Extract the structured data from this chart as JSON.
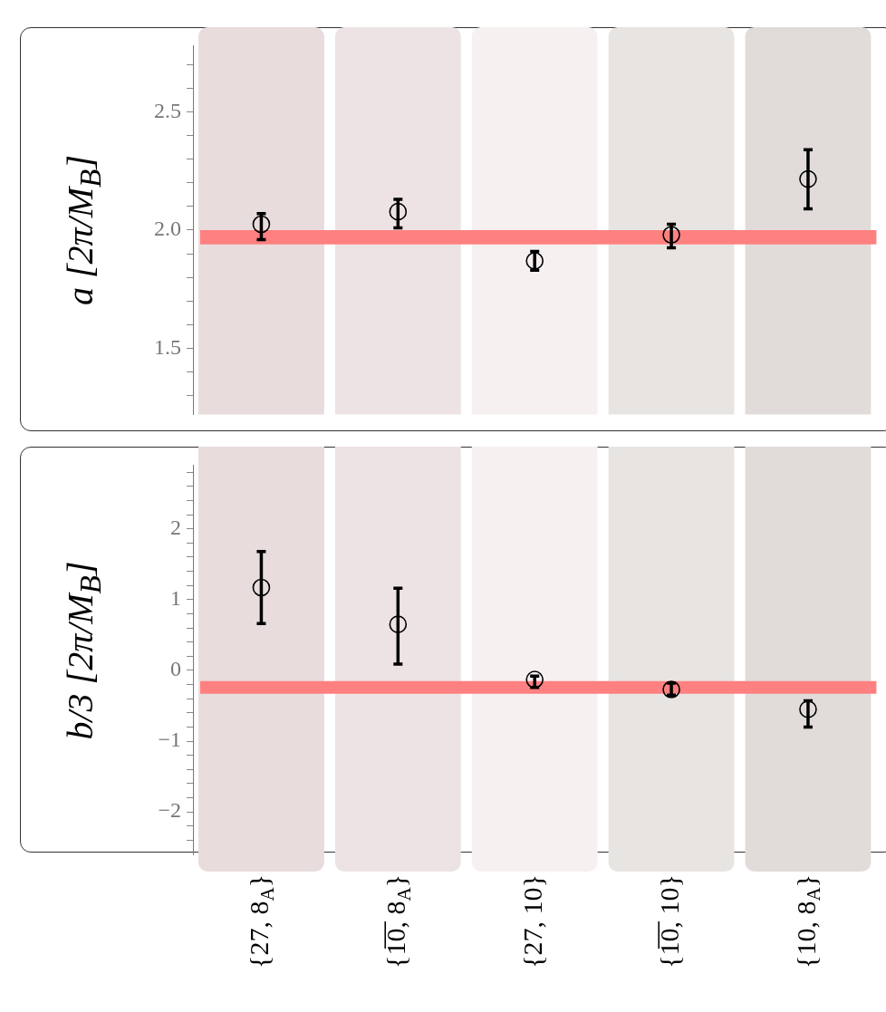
{
  "chart_data": [
    {
      "type": "scatter",
      "ylabel": "a [2π/M$_{B}$]",
      "categories": [
        "{27, 8$_{A}$}",
        "{1̅0̅, 8$_{A}$}",
        "{27, 10}",
        "{1̅0̅, 10}",
        "{10, 8$_{A}$}"
      ],
      "series": [
        {
          "color": "#000000",
          "values": [
            2.025,
            2.078,
            1.87,
            1.98,
            2.216
          ],
          "errors": [
            [
              1.96,
              2.07
            ],
            [
              2.01,
              2.13
            ],
            [
              1.83,
              1.91
            ],
            [
              1.925,
              2.025
            ],
            [
              2.09,
              2.34
            ]
          ]
        }
      ],
      "ylim": [
        1.22,
        2.78
      ],
      "yticks": [
        {
          "value": 1.3,
          "label": null
        },
        {
          "value": 1.4,
          "label": null
        },
        {
          "value": 1.5,
          "label": "1.5"
        },
        {
          "value": 1.6,
          "label": null
        },
        {
          "value": 1.7,
          "label": null
        },
        {
          "value": 1.8,
          "label": null
        },
        {
          "value": 1.9,
          "label": null
        },
        {
          "value": 2.0,
          "label": "2.0"
        },
        {
          "value": 2.1,
          "label": null
        },
        {
          "value": 2.2,
          "label": null
        },
        {
          "value": 2.3,
          "label": null
        },
        {
          "value": 2.4,
          "label": null
        },
        {
          "value": 2.5,
          "label": "2.5"
        },
        {
          "value": 2.6,
          "label": null
        },
        {
          "value": 2.7,
          "label": null
        }
      ],
      "bands": [
        {
          "axis": "x",
          "from": "{27, 8$_{A}$}",
          "to": "{27, 8$_{A}$}",
          "color": "#e8dcdd"
        },
        {
          "axis": "x",
          "from": "{1̅0̅, 8$_{A}$}",
          "to": "{1̅0̅, 8$_{A}$}",
          "color": "#ede3e4"
        },
        {
          "axis": "x",
          "from": "{27, 10}",
          "to": "{27, 10}",
          "color": "#f6f0f0"
        },
        {
          "axis": "x",
          "from": "{1̅0̅, 10}",
          "to": "{1̅0̅, 10}",
          "color": "#e8e4e2"
        },
        {
          "axis": "x",
          "from": "{10, 8$_{A}$}",
          "to": "{10, 8$_{A}$}",
          "color": "#e1dcda"
        },
        {
          "axis": "y",
          "from": 1.94,
          "to": 2.0,
          "color": "#ff8080"
        }
      ],
      "marker": "circle",
      "grid": false,
      "tick_labels": "y"
    },
    {
      "type": "scatter",
      "ylabel": "b/3 [2π/M$_{B}$]",
      "categories": [
        "{27, 8$_{A}$}",
        "{1̅0̅, 8$_{A}$}",
        "{27, 10}",
        "{1̅0̅, 10}",
        "{10, 8$_{A}$}"
      ],
      "series": [
        {
          "color": "#000000",
          "values": [
            1.17,
            0.65,
            -0.13,
            -0.27,
            -0.55
          ],
          "errors": [
            [
              0.66,
              1.68
            ],
            [
              0.09,
              1.16
            ],
            [
              -0.24,
              -0.08
            ],
            [
              -0.35,
              -0.18
            ],
            [
              -0.8,
              -0.43
            ]
          ]
        }
      ],
      "ylim": [
        -2.6,
        2.9
      ],
      "yticks": [
        {
          "value": -2.4,
          "label": null
        },
        {
          "value": -2.2,
          "label": null
        },
        {
          "value": -2,
          "label": "−2"
        },
        {
          "value": -1.8,
          "label": null
        },
        {
          "value": -1.6,
          "label": null
        },
        {
          "value": -1.4,
          "label": null
        },
        {
          "value": -1.2,
          "label": null
        },
        {
          "value": -1,
          "label": "−1"
        },
        {
          "value": -0.8,
          "label": null
        },
        {
          "value": -0.6,
          "label": null
        },
        {
          "value": -0.4,
          "label": null
        },
        {
          "value": -0.2,
          "label": null
        },
        0,
        {
          "value": 0.2,
          "label": null
        },
        {
          "value": 0.4,
          "label": null
        },
        {
          "value": 0.6,
          "label": null
        },
        {
          "value": 0.8,
          "label": null
        },
        1,
        {
          "value": 1.2,
          "label": null
        },
        {
          "value": 1.4,
          "label": null
        },
        {
          "value": 1.6,
          "label": null
        },
        {
          "value": 1.8,
          "label": null
        },
        2,
        {
          "value": 2.2,
          "label": null
        },
        {
          "value": 2.4,
          "label": null
        },
        {
          "value": 2.6,
          "label": null
        },
        {
          "value": 2.8,
          "label": null
        }
      ],
      "bands": [
        {
          "axis": "x",
          "from": "{27, 8$_{A}$}",
          "to": "{27, 8$_{A}$}",
          "color": "#e8dcdd"
        },
        {
          "axis": "x",
          "from": "{1̅0̅, 8$_{A}$}",
          "to": "{1̅0̅, 8$_{A}$}",
          "color": "#ede3e4"
        },
        {
          "axis": "x",
          "from": "{27, 10}",
          "to": "{27, 10}",
          "color": "#f6f0f0"
        },
        {
          "axis": "x",
          "from": "{1̅0̅, 10}",
          "to": "{1̅0̅, 10}",
          "color": "#e8e4e2"
        },
        {
          "axis": "x",
          "from": "{10, 8$_{A}$}",
          "to": "{10, 8$_{A}$}",
          "color": "#e1dcda"
        },
        {
          "axis": "y",
          "from": -0.33,
          "to": -0.15,
          "color": "#ff8080"
        }
      ],
      "marker": "circle",
      "grid": false
    }
  ]
}
